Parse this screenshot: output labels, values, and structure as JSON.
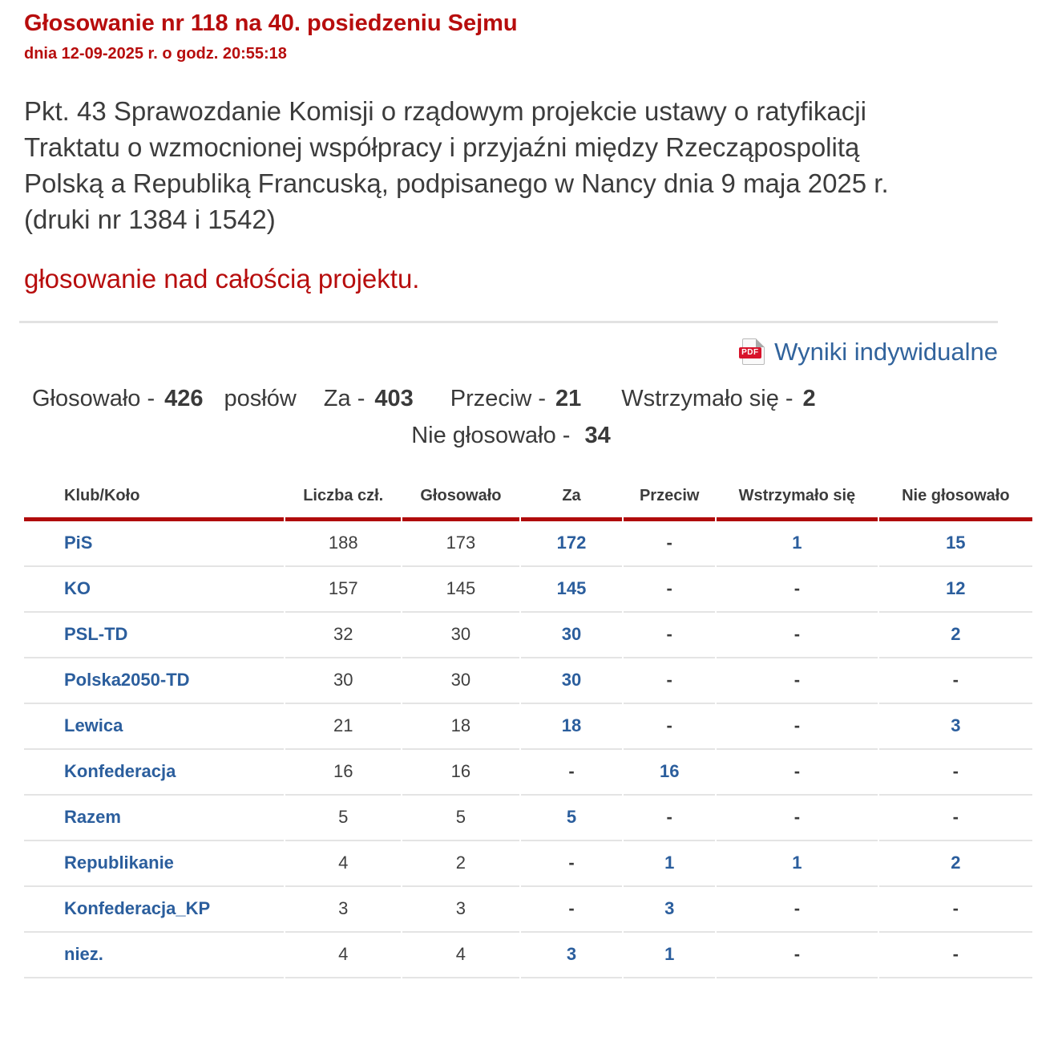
{
  "header": {
    "title": "Głosowanie nr 118 na 40. posiedzeniu Sejmu",
    "datetime": "dnia 12-09-2025 r. o godz. 20:55:18"
  },
  "main": {
    "description": "Pkt. 43 Sprawozdanie Komisji o rządowym projekcie ustawy o ratyfikacji Traktatu o wzmocnionej współpracy i przyjaźni między Rzecząpospolitą Polską a Republiką Francuską, podpisanego w Nancy dnia 9 maja 2025 r. (druki nr 1384 i 1542)",
    "vote_subject": "głosowanie nad całością projektu.",
    "pdf_link_label": "Wyniki indywidualne",
    "pdf_icon_label": "PDF"
  },
  "summary": {
    "items": [
      {
        "label": "Głosowało -",
        "value": "426",
        "suffix": "posłów"
      },
      {
        "label": "Za -",
        "value": "403"
      },
      {
        "label": "Przeciw -",
        "value": "21"
      },
      {
        "label": "Wstrzymało się -",
        "value": "2"
      }
    ],
    "second_line": {
      "label": "Nie głosowało -",
      "value": "34"
    }
  },
  "table": {
    "columns": [
      "Klub/Koło",
      "Liczba czł.",
      "Głosowało",
      "Za",
      "Przeciw",
      "Wstrzymało się",
      "Nie głosowało"
    ],
    "rows": [
      {
        "cells": [
          "PiS",
          "188",
          "173",
          "172",
          "-",
          "1",
          "15"
        ]
      },
      {
        "cells": [
          "KO",
          "157",
          "145",
          "145",
          "-",
          "-",
          "12"
        ]
      },
      {
        "cells": [
          "PSL-TD",
          "32",
          "30",
          "30",
          "-",
          "-",
          "2"
        ]
      },
      {
        "cells": [
          "Polska2050-TD",
          "30",
          "30",
          "30",
          "-",
          "-",
          "-"
        ]
      },
      {
        "cells": [
          "Lewica",
          "21",
          "18",
          "18",
          "-",
          "-",
          "3"
        ]
      },
      {
        "cells": [
          "Konfederacja",
          "16",
          "16",
          "-",
          "16",
          "-",
          "-"
        ]
      },
      {
        "cells": [
          "Razem",
          "5",
          "5",
          "5",
          "-",
          "-",
          "-"
        ]
      },
      {
        "cells": [
          "Republikanie",
          "4",
          "2",
          "-",
          "1",
          "1",
          "2"
        ]
      },
      {
        "cells": [
          "Konfederacja_KP",
          "3",
          "3",
          "-",
          "3",
          "-",
          "-"
        ]
      },
      {
        "cells": [
          "niez.",
          "4",
          "4",
          "3",
          "1",
          "-",
          "-"
        ]
      }
    ]
  },
  "colors": {
    "title_red": "#b70d0d",
    "table_border_red": "#b00b0b",
    "link_blue": "#31639c",
    "value_blue": "#2b5e9d",
    "text_gray": "#3c3c3c",
    "pdf_badge_red": "#d8132b"
  }
}
